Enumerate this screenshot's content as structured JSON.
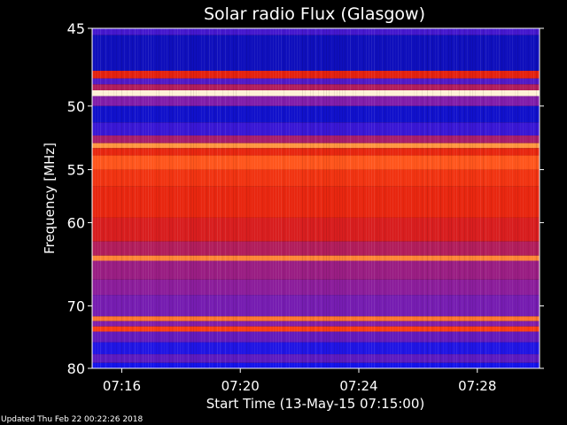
{
  "chart_data": {
    "type": "heatmap",
    "title": "Solar radio Flux (Glasgow)",
    "xlabel": "Start Time (13-May-15 07:15:00)",
    "ylabel": "Frequency [MHz]",
    "x_ticks": [
      "07:16",
      "07:20",
      "07:24",
      "07:28"
    ],
    "x_tick_minutes": [
      1,
      5,
      9,
      13
    ],
    "xlim_minutes": [
      0,
      15.1
    ],
    "y_ticks": [
      45,
      50,
      55,
      60,
      70,
      80
    ],
    "ylim": [
      45,
      80
    ],
    "y_scale": "reciprocal",
    "colormap": "blue-red-yellow-white",
    "intensity_bands": [
      {
        "f_start": 45.0,
        "f_end": 45.4,
        "level": 0.2
      },
      {
        "f_start": 45.4,
        "f_end": 47.6,
        "level": 0.06
      },
      {
        "f_start": 47.6,
        "f_end": 48.1,
        "level": 0.52
      },
      {
        "f_start": 48.1,
        "f_end": 48.5,
        "level": 0.22
      },
      {
        "f_start": 48.5,
        "f_end": 48.9,
        "level": 0.4
      },
      {
        "f_start": 48.9,
        "f_end": 49.3,
        "level": 0.97
      },
      {
        "f_start": 49.3,
        "f_end": 50.0,
        "level": 0.3
      },
      {
        "f_start": 50.0,
        "f_end": 51.2,
        "level": 0.08
      },
      {
        "f_start": 51.2,
        "f_end": 52.2,
        "level": 0.18
      },
      {
        "f_start": 52.2,
        "f_end": 52.8,
        "level": 0.38
      },
      {
        "f_start": 52.8,
        "f_end": 53.2,
        "level": 0.82
      },
      {
        "f_start": 53.2,
        "f_end": 53.8,
        "level": 0.55
      },
      {
        "f_start": 53.8,
        "f_end": 55.0,
        "level": 0.74
      },
      {
        "f_start": 55.0,
        "f_end": 56.5,
        "level": 0.62
      },
      {
        "f_start": 56.5,
        "f_end": 59.5,
        "level": 0.55
      },
      {
        "f_start": 59.5,
        "f_end": 62.0,
        "level": 0.48
      },
      {
        "f_start": 62.0,
        "f_end": 63.6,
        "level": 0.4
      },
      {
        "f_start": 63.6,
        "f_end": 64.2,
        "level": 0.8
      },
      {
        "f_start": 64.2,
        "f_end": 66.5,
        "level": 0.35
      },
      {
        "f_start": 66.5,
        "f_end": 68.5,
        "level": 0.32
      },
      {
        "f_start": 68.5,
        "f_end": 71.5,
        "level": 0.28
      },
      {
        "f_start": 71.5,
        "f_end": 72.2,
        "level": 0.78
      },
      {
        "f_start": 72.2,
        "f_end": 73.0,
        "level": 0.3
      },
      {
        "f_start": 73.0,
        "f_end": 73.8,
        "level": 0.68
      },
      {
        "f_start": 73.8,
        "f_end": 75.5,
        "level": 0.25
      },
      {
        "f_start": 75.5,
        "f_end": 77.5,
        "level": 0.14
      },
      {
        "f_start": 77.5,
        "f_end": 79.0,
        "level": 0.24
      },
      {
        "f_start": 79.0,
        "f_end": 80.0,
        "level": 0.12
      }
    ]
  },
  "footer": {
    "updated": "Updated Thu Feb 22 00:22:26 2018"
  },
  "colors": {
    "background": "#000000",
    "text": "#ffffff",
    "low": "#1010c8",
    "mid": "#d81a0a",
    "high": "#ffffff"
  }
}
